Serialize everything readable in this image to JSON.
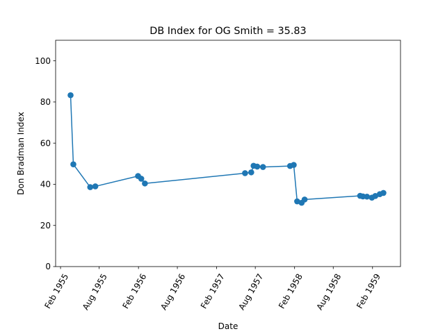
{
  "chart_data": {
    "type": "line",
    "title": "DB Index for OG Smith = 35.83",
    "xlabel": "Date",
    "ylabel": "Don Bradman Index",
    "xlim": [
      "1955-01-09",
      "1959-06-12"
    ],
    "ylim": [
      0,
      110
    ],
    "x_ticks": [
      {
        "date": "1955-02-01",
        "label": "Feb 1955"
      },
      {
        "date": "1955-08-01",
        "label": "Aug 1955"
      },
      {
        "date": "1956-02-01",
        "label": "Feb 1956"
      },
      {
        "date": "1956-08-01",
        "label": "Aug 1956"
      },
      {
        "date": "1957-02-01",
        "label": "Feb 1957"
      },
      {
        "date": "1957-08-01",
        "label": "Aug 1957"
      },
      {
        "date": "1958-02-01",
        "label": "Feb 1958"
      },
      {
        "date": "1958-08-01",
        "label": "Aug 1958"
      },
      {
        "date": "1959-02-01",
        "label": "Feb 1959"
      }
    ],
    "y_ticks": [
      0,
      20,
      40,
      60,
      80,
      100
    ],
    "grid": false,
    "legend": "none",
    "series": [
      {
        "color": "#1f77b4",
        "marker": "circle",
        "points": [
          {
            "x": "1955-03-20",
            "y": 83.3
          },
          {
            "x": "1955-04-02",
            "y": 49.7
          },
          {
            "x": "1955-06-20",
            "y": 38.6
          },
          {
            "x": "1955-07-14",
            "y": 39.0
          },
          {
            "x": "1956-01-30",
            "y": 44.0
          },
          {
            "x": "1956-02-14",
            "y": 42.7
          },
          {
            "x": "1956-03-02",
            "y": 40.4
          },
          {
            "x": "1957-06-14",
            "y": 45.4
          },
          {
            "x": "1957-07-13",
            "y": 45.8
          },
          {
            "x": "1957-07-24",
            "y": 49.0
          },
          {
            "x": "1957-08-10",
            "y": 48.6
          },
          {
            "x": "1957-09-06",
            "y": 48.4
          },
          {
            "x": "1958-01-11",
            "y": 48.9
          },
          {
            "x": "1958-01-28",
            "y": 49.4
          },
          {
            "x": "1958-02-13",
            "y": 31.7
          },
          {
            "x": "1958-03-06",
            "y": 31.0
          },
          {
            "x": "1958-03-20",
            "y": 32.6
          },
          {
            "x": "1958-12-05",
            "y": 34.4
          },
          {
            "x": "1958-12-18",
            "y": 34.1
          },
          {
            "x": "1959-01-06",
            "y": 34.0
          },
          {
            "x": "1959-01-29",
            "y": 33.5
          },
          {
            "x": "1959-02-14",
            "y": 34.3
          },
          {
            "x": "1959-03-07",
            "y": 35.2
          },
          {
            "x": "1959-03-24",
            "y": 35.8
          }
        ]
      }
    ]
  }
}
